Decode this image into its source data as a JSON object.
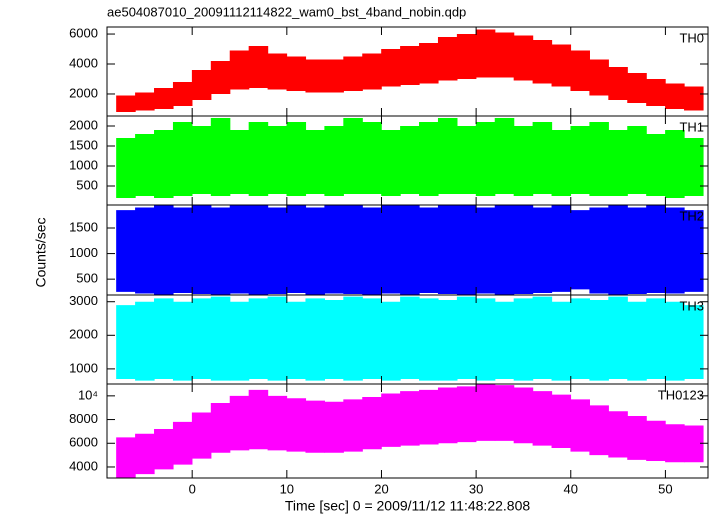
{
  "chart_data": [
    {
      "type": "band",
      "title": "ae504087010_20091112114822_wam0_bst_4band_nobin.qdp",
      "xlim": [
        -9,
        54.5
      ],
      "ylim": [
        530,
        6470
      ],
      "yticks": [
        2000,
        4000,
        6000
      ],
      "x": [
        -7,
        -5,
        -3,
        -1,
        1,
        3,
        5,
        7,
        9,
        11,
        13,
        15,
        17,
        19,
        21,
        23,
        25,
        27,
        29,
        31,
        33,
        35,
        37,
        39,
        41,
        43,
        45,
        47,
        49,
        51,
        53
      ],
      "series": [
        {
          "name": "TH0",
          "color": "#ff0000",
          "max": [
            1900,
            2100,
            2400,
            2800,
            3600,
            4200,
            4900,
            5200,
            4700,
            4500,
            4300,
            4300,
            4500,
            4700,
            5000,
            5200,
            5400,
            5800,
            6000,
            6300,
            6100,
            5900,
            5600,
            5300,
            4900,
            4300,
            3800,
            3400,
            3000,
            2700,
            2500
          ],
          "min": [
            800,
            900,
            1000,
            1200,
            1600,
            2000,
            2300,
            2400,
            2300,
            2200,
            2100,
            2100,
            2200,
            2300,
            2500,
            2600,
            2700,
            2900,
            3000,
            3100,
            3100,
            2900,
            2700,
            2500,
            2200,
            1900,
            1600,
            1400,
            1200,
            1000,
            900
          ]
        }
      ]
    },
    {
      "type": "band",
      "xlim": [
        -9,
        54.5
      ],
      "ylim": [
        25,
        2250
      ],
      "yticks": [
        500,
        1000,
        1500,
        2000
      ],
      "x": [
        -7,
        -5,
        -3,
        -1,
        1,
        3,
        5,
        7,
        9,
        11,
        13,
        15,
        17,
        19,
        21,
        23,
        25,
        27,
        29,
        31,
        33,
        35,
        37,
        39,
        41,
        43,
        45,
        47,
        49,
        51,
        53
      ],
      "series": [
        {
          "name": "TH1",
          "color": "#00ff00",
          "max": [
            1700,
            1800,
            1900,
            2100,
            2000,
            2200,
            1900,
            2100,
            2000,
            2100,
            1900,
            2000,
            2200,
            2100,
            1900,
            2000,
            2100,
            2200,
            2000,
            2100,
            2200,
            2000,
            2100,
            1900,
            2000,
            2100,
            1900,
            2000,
            1800,
            1900,
            1700
          ],
          "min": [
            200,
            250,
            200,
            250,
            300,
            250,
            300,
            250,
            300,
            250,
            300,
            250,
            300,
            300,
            250,
            300,
            250,
            300,
            300,
            250,
            300,
            250,
            300,
            250,
            300,
            250,
            250,
            300,
            250,
            200,
            250
          ]
        }
      ]
    },
    {
      "type": "band",
      "ylabel": "Counts/sec",
      "xlim": [
        -9,
        54.5
      ],
      "ylim": [
        190,
        1950
      ],
      "yticks": [
        500,
        1000,
        1500
      ],
      "x": [
        -7,
        -5,
        -3,
        -1,
        1,
        3,
        5,
        7,
        9,
        11,
        13,
        15,
        17,
        19,
        21,
        23,
        25,
        27,
        29,
        31,
        33,
        35,
        37,
        39,
        41,
        43,
        45,
        47,
        49,
        51,
        53
      ],
      "series": [
        {
          "name": "TH2",
          "color": "#0000ff",
          "max": [
            1850,
            1900,
            1950,
            1900,
            1950,
            1900,
            1950,
            1950,
            1900,
            1950,
            1900,
            1950,
            1950,
            1900,
            1950,
            1950,
            1900,
            1950,
            1950,
            1900,
            1950,
            1950,
            1900,
            1950,
            1850,
            1900,
            1950,
            1900,
            1950,
            1900,
            1850
          ],
          "min": [
            250,
            220,
            200,
            230,
            210,
            200,
            220,
            200,
            210,
            230,
            200,
            220,
            210,
            200,
            220,
            200,
            230,
            210,
            200,
            220,
            200,
            210,
            230,
            250,
            300,
            220,
            200,
            210,
            230,
            220,
            250
          ]
        }
      ]
    },
    {
      "type": "band",
      "xlim": [
        -9,
        54.5
      ],
      "ylim": [
        550,
        3200
      ],
      "yticks": [
        1000,
        2000,
        3000
      ],
      "x": [
        -7,
        -5,
        -3,
        -1,
        1,
        3,
        5,
        7,
        9,
        11,
        13,
        15,
        17,
        19,
        21,
        23,
        25,
        27,
        29,
        31,
        33,
        35,
        37,
        39,
        41,
        43,
        45,
        47,
        49,
        51,
        53
      ],
      "series": [
        {
          "name": "TH3",
          "color": "#00ffff",
          "max": [
            2900,
            3000,
            3100,
            3000,
            3100,
            3150,
            3000,
            3100,
            3150,
            3000,
            3100,
            3050,
            3150,
            3100,
            3000,
            3150,
            3100,
            3050,
            3150,
            3100,
            3000,
            3100,
            3150,
            3000,
            3100,
            3050,
            3150,
            3000,
            3100,
            3000,
            2900
          ],
          "min": [
            700,
            650,
            700,
            650,
            700,
            650,
            650,
            700,
            650,
            700,
            650,
            700,
            650,
            700,
            650,
            700,
            650,
            650,
            700,
            650,
            700,
            650,
            700,
            650,
            700,
            650,
            700,
            650,
            700,
            650,
            700
          ]
        }
      ]
    },
    {
      "type": "band",
      "xlabel": "Time [sec] 0 = 2009/11/12 11:48:22.808",
      "xlim": [
        -9,
        54.5
      ],
      "ylim": [
        3070,
        11000
      ],
      "yticks": [
        4000,
        6000,
        8000,
        {
          "value": 10000,
          "label": "10⁴"
        }
      ],
      "xticks": [
        0,
        10,
        20,
        30,
        40,
        50
      ],
      "x": [
        -7,
        -5,
        -3,
        -1,
        1,
        3,
        5,
        7,
        9,
        11,
        13,
        15,
        17,
        19,
        21,
        23,
        25,
        27,
        29,
        31,
        33,
        35,
        37,
        39,
        41,
        43,
        45,
        47,
        49,
        51,
        53
      ],
      "series": [
        {
          "name": "TH0123",
          "color": "#ff00ff",
          "max": [
            6500,
            6800,
            7200,
            7800,
            8600,
            9400,
            10000,
            10500,
            10000,
            9800,
            9600,
            9500,
            9700,
            9900,
            10200,
            10400,
            10500,
            10700,
            10800,
            11000,
            10900,
            10700,
            10400,
            10100,
            9700,
            9200,
            8700,
            8300,
            7900,
            7600,
            7500
          ],
          "min": [
            3100,
            3400,
            3800,
            4200,
            4700,
            5200,
            5400,
            5500,
            5400,
            5300,
            5200,
            5200,
            5300,
            5500,
            5700,
            5800,
            5900,
            6000,
            6100,
            6200,
            6200,
            6000,
            5800,
            5600,
            5300,
            5000,
            4800,
            4600,
            4500,
            4400,
            4400
          ]
        }
      ]
    }
  ]
}
